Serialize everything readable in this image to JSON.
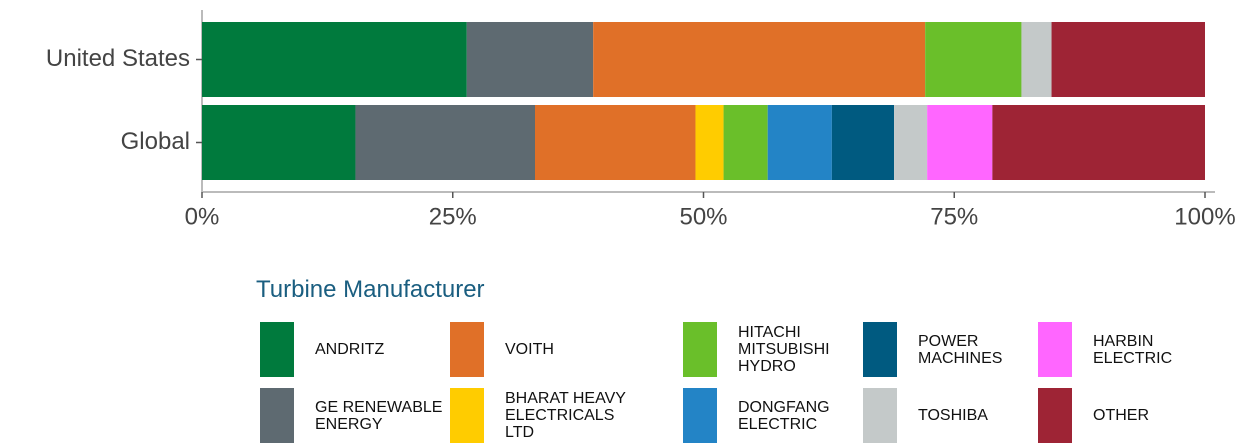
{
  "chart_data": {
    "type": "stacked-barh",
    "categories": [
      "United States",
      "Global"
    ],
    "legend_title": "Turbine Manufacturer",
    "series": [
      {
        "name": "ANDRITZ",
        "color": "#007a3d",
        "values": [
          26.4,
          15.3
        ]
      },
      {
        "name": "GE RENEWABLE ENERGY",
        "color": "#5e6a71",
        "values": [
          12.6,
          17.9
        ]
      },
      {
        "name": "VOITH",
        "color": "#e07028",
        "values": [
          33.1,
          16.0
        ]
      },
      {
        "name": "BHARAT HEAVY ELECTRICALS LTD",
        "color": "#ffcc00",
        "values": [
          0,
          2.8
        ]
      },
      {
        "name": "HITACHI MITSUBISHI HYDRO",
        "color": "#6abf2a",
        "values": [
          9.6,
          4.4
        ]
      },
      {
        "name": "DONGFANG ELECTRIC",
        "color": "#2384c6",
        "values": [
          0,
          6.4
        ]
      },
      {
        "name": "POWER MACHINES",
        "color": "#005a80",
        "values": [
          0,
          6.2
        ]
      },
      {
        "name": "TOSHIBA",
        "color": "#c4c9c9",
        "values": [
          3.0,
          3.3
        ]
      },
      {
        "name": "HARBIN ELECTRIC",
        "color": "#ff66ff",
        "values": [
          0,
          6.5
        ]
      },
      {
        "name": "OTHER",
        "color": "#9e2435",
        "values": [
          15.3,
          21.2
        ]
      }
    ],
    "xlim": [
      0,
      100
    ],
    "xticks": [
      {
        "value": 0,
        "label": "0%"
      },
      {
        "value": 25,
        "label": "25%"
      },
      {
        "value": 50,
        "label": "50%"
      },
      {
        "value": 75,
        "label": "75%"
      },
      {
        "value": 100,
        "label": "100%"
      }
    ]
  }
}
